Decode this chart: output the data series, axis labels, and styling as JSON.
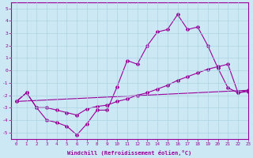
{
  "line1_x": [
    0,
    1,
    2,
    3,
    4,
    5,
    6,
    7,
    8,
    9,
    10,
    11,
    12,
    13,
    14,
    15,
    16,
    17,
    18,
    19,
    20,
    21,
    22,
    23
  ],
  "line1_y": [
    -2.5,
    -1.8,
    -3.0,
    -4.0,
    -4.2,
    -4.5,
    -5.2,
    -4.3,
    -3.2,
    -3.2,
    -1.3,
    0.8,
    0.5,
    2.0,
    3.1,
    3.3,
    4.5,
    3.3,
    3.5,
    2.0,
    0.2,
    -1.4,
    -1.8,
    -1.6
  ],
  "line2_x": [
    0,
    1,
    2,
    3,
    4,
    5,
    6,
    7,
    8,
    9,
    10,
    11,
    12,
    13,
    14,
    15,
    16,
    17,
    18,
    19,
    20,
    21,
    22,
    23
  ],
  "line2_y": [
    -2.5,
    -1.8,
    -3.0,
    -3.0,
    -3.2,
    -3.4,
    -3.6,
    -3.1,
    -2.9,
    -2.8,
    -2.5,
    -2.3,
    -2.0,
    -1.8,
    -1.5,
    -1.2,
    -0.8,
    -0.5,
    -0.2,
    0.1,
    0.3,
    0.5,
    -1.8,
    -1.7
  ],
  "line3_x": [
    0,
    23
  ],
  "line3_y": [
    -2.5,
    -1.6
  ],
  "color": "#990099",
  "bg_color": "#cce8f4",
  "grid_color": "#aad4e4",
  "xlabel": "Windchill (Refroidissement éolien,°C)",
  "xlim": [
    -0.5,
    23
  ],
  "ylim": [
    -5.5,
    5.5
  ],
  "yticks": [
    -5,
    -4,
    -3,
    -2,
    -1,
    0,
    1,
    2,
    3,
    4,
    5
  ],
  "xticks": [
    0,
    1,
    2,
    3,
    4,
    5,
    6,
    7,
    8,
    9,
    10,
    11,
    12,
    13,
    14,
    15,
    16,
    17,
    18,
    19,
    20,
    21,
    22,
    23
  ]
}
